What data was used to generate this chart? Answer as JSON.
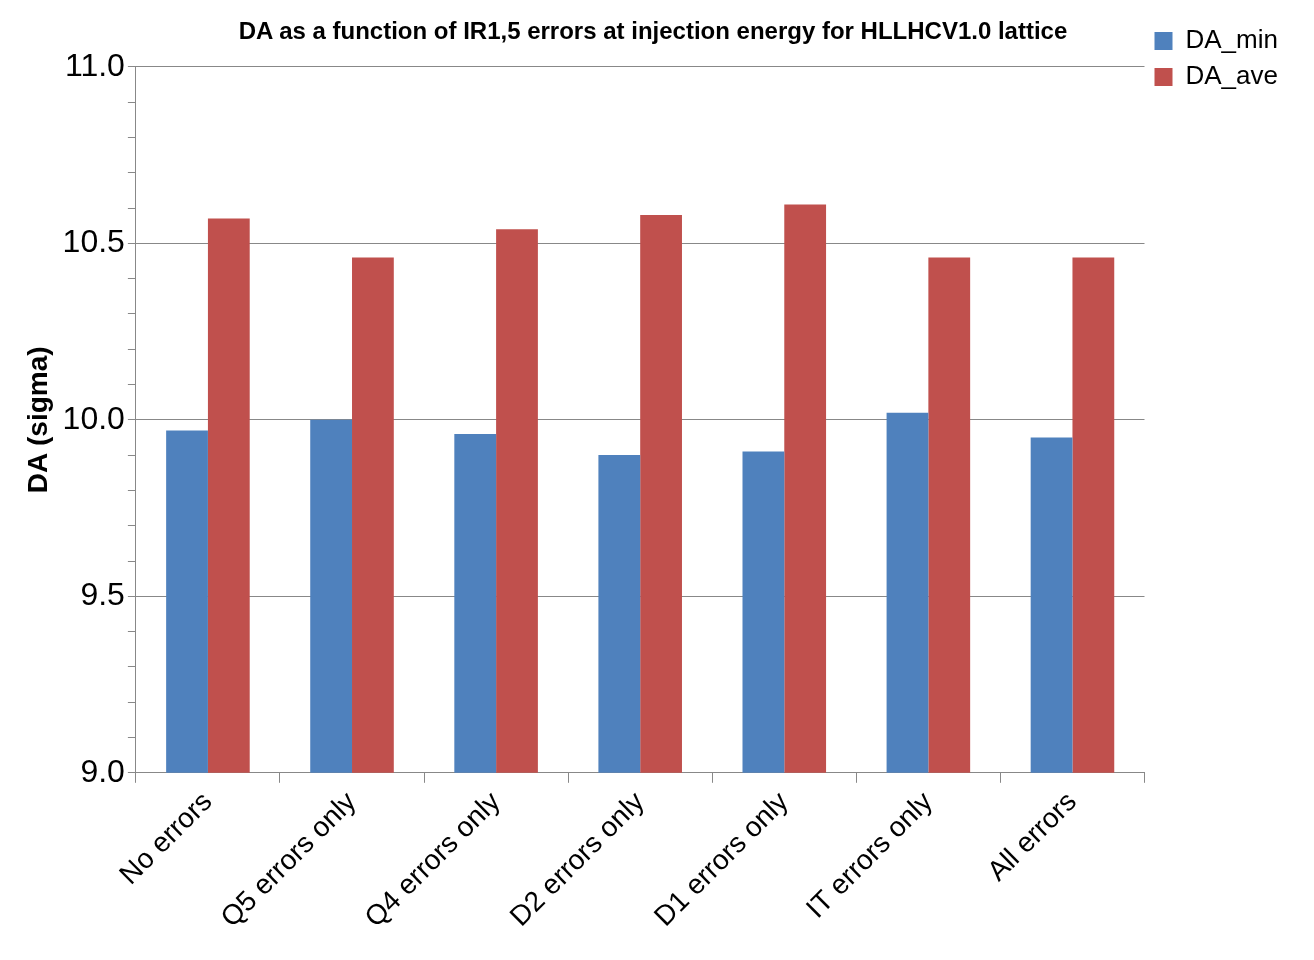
{
  "chart_data": {
    "type": "bar",
    "title": "DA as a function of IR1,5 errors at injection energy for HLLHCV1.0 lattice",
    "ylabel": "DA (sigma)",
    "categories": [
      "No errors",
      "Q5 errors only",
      "Q4 errors only",
      "D2 errors only",
      "D1 errors only",
      "IT errors only",
      "All errors"
    ],
    "series": [
      {
        "name": "DA_min",
        "color": "#4f81bd",
        "values": [
          9.97,
          10.0,
          9.96,
          9.9,
          9.91,
          10.02,
          9.95
        ]
      },
      {
        "name": "DA_ave",
        "color": "#c0504d",
        "values": [
          10.57,
          10.46,
          10.54,
          10.58,
          10.61,
          10.46,
          10.46
        ]
      }
    ],
    "ylim": [
      9,
      11
    ],
    "yticks": [
      {
        "value": 9,
        "label": "9.0"
      },
      {
        "value": 9.1,
        "label": null
      },
      {
        "value": 9.2,
        "label": null
      },
      {
        "value": 9.3,
        "label": null
      },
      {
        "value": 9.4,
        "label": null
      },
      {
        "value": 9.5,
        "label": "9.5"
      },
      {
        "value": 9.6,
        "label": null
      },
      {
        "value": 9.7,
        "label": null
      },
      {
        "value": 9.8,
        "label": null
      },
      {
        "value": 9.9,
        "label": null
      },
      {
        "value": 10,
        "label": "10.0"
      },
      {
        "value": 10.1,
        "label": null
      },
      {
        "value": 10.2,
        "label": null
      },
      {
        "value": 10.3,
        "label": null
      },
      {
        "value": 10.4,
        "label": null
      },
      {
        "value": 10.5,
        "label": "10.5"
      },
      {
        "value": 10.6,
        "label": null
      },
      {
        "value": 10.7,
        "label": null
      },
      {
        "value": 10.8,
        "label": null
      },
      {
        "value": 10.9,
        "label": null
      },
      {
        "value": 11,
        "label": "11.0"
      }
    ],
    "grid": "y",
    "legend": "top right"
  }
}
